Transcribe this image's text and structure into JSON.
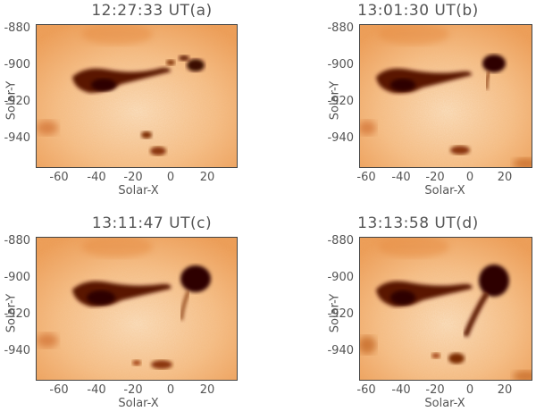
{
  "colors": {
    "background": "#f3ae72",
    "light": "#fbe3c8",
    "dark": "#3a0700",
    "text": "#555555"
  },
  "panels": [
    {
      "title": "12:27:33 UT(a)",
      "xlabel": "Solar-X",
      "ylabel": "Solar-Y",
      "xticks": [
        "-60",
        "-40",
        "-20",
        "0",
        "20"
      ],
      "yticks": [
        "-880",
        "-900",
        "-920",
        "-940"
      ]
    },
    {
      "title": "13:01:30 UT(b)",
      "xlabel": "Solar-X",
      "ylabel": "Solar-Y",
      "xticks": [
        "-60",
        "-40",
        "-20",
        "0",
        "20"
      ],
      "yticks": [
        "-880",
        "-900",
        "-920",
        "-940"
      ]
    },
    {
      "title": "13:11:47 UT(c)",
      "xlabel": "Solar-X",
      "ylabel": "Solar-Y",
      "xticks": [
        "-60",
        "-40",
        "-20",
        "0",
        "20"
      ],
      "yticks": [
        "-880",
        "-900",
        "-920",
        "-940"
      ]
    },
    {
      "title": "13:13:58 UT(d)",
      "xlabel": "Solar-X",
      "ylabel": "Solar-Y",
      "xticks": [
        "-60",
        "-40",
        "-20",
        "0",
        "20"
      ],
      "yticks": [
        "-880",
        "-900",
        "-920",
        "-940"
      ]
    }
  ]
}
